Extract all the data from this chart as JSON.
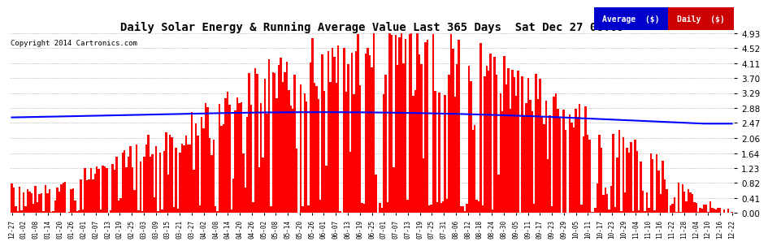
{
  "title": "Daily Solar Energy & Running Average Value Last 365 Days  Sat Dec 27 08:09",
  "copyright": "Copyright 2014 Cartronics.com",
  "bg_color": "#ffffff",
  "plot_bg_color": "#ffffff",
  "bar_color": "#ff0000",
  "avg_line_color": "#0000ff",
  "yticks": [
    0.0,
    0.41,
    0.82,
    1.23,
    1.64,
    2.06,
    2.47,
    2.88,
    3.29,
    3.7,
    4.11,
    4.52,
    4.93
  ],
  "ymax": 4.93,
  "legend_avg_color": "#0000cc",
  "legend_daily_color": "#cc0000",
  "legend_avg_text": "Average  ($)",
  "legend_daily_text": "Daily  ($)",
  "x_labels": [
    "12-27",
    "01-02",
    "01-08",
    "01-14",
    "01-20",
    "01-26",
    "02-01",
    "02-07",
    "02-13",
    "02-19",
    "02-25",
    "03-03",
    "03-09",
    "03-15",
    "03-21",
    "03-27",
    "04-02",
    "04-08",
    "04-14",
    "04-20",
    "04-26",
    "05-02",
    "05-08",
    "05-14",
    "05-20",
    "05-26",
    "06-01",
    "06-07",
    "06-13",
    "06-19",
    "06-25",
    "07-01",
    "07-07",
    "07-13",
    "07-19",
    "07-25",
    "07-31",
    "08-06",
    "08-12",
    "08-18",
    "08-24",
    "08-30",
    "09-05",
    "09-11",
    "09-17",
    "09-23",
    "09-29",
    "10-05",
    "10-11",
    "10-17",
    "10-23",
    "10-29",
    "11-04",
    "11-10",
    "11-16",
    "11-22",
    "11-28",
    "12-04",
    "12-10",
    "12-16",
    "12-22"
  ]
}
